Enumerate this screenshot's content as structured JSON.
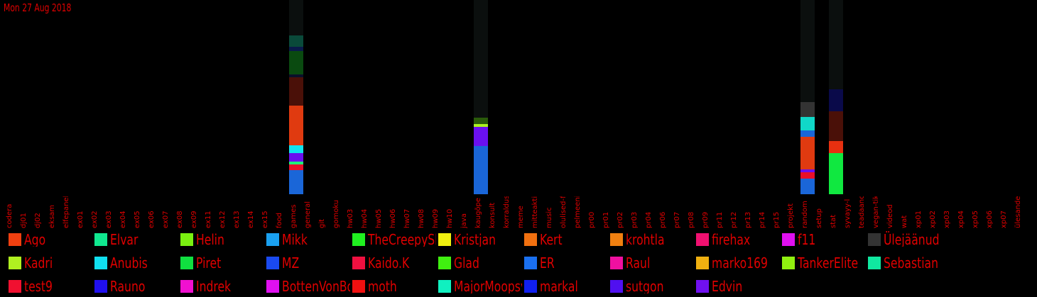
{
  "header": {
    "date": "Mon 27 Aug 2018"
  },
  "chart_data": {
    "type": "bar",
    "stacked": true,
    "title": "",
    "xlabel": "",
    "ylabel": "",
    "y_unit": "relative",
    "background": "#000000",
    "track_color": "#0b0f0e",
    "text_color": "#e00000",
    "categories": [
      "codera",
      "dj01",
      "dj02",
      "eksam",
      "elfepanek",
      "ex01",
      "ex02",
      "ex03",
      "ex04",
      "ex05",
      "ex06",
      "ex07",
      "ex08",
      "ex09",
      "ex11",
      "ex12",
      "ex13",
      "ex14",
      "ex15",
      "food",
      "games",
      "general",
      "git",
      "gomoku",
      "hw03",
      "hw04",
      "hw05",
      "hw06",
      "hw07",
      "hw08",
      "hw09",
      "hw10",
      "java",
      "kaugõpe",
      "konsult",
      "korraldus",
      "meme",
      "mitteaktiivsed",
      "music",
      "olulised-f",
      "pelmeeni",
      "pr00",
      "pr01",
      "pr02",
      "pr03",
      "pr04",
      "pr06",
      "pr07",
      "pr08",
      "pr09",
      "pr11",
      "pr12",
      "pr13",
      "pr14",
      "pr15",
      "projekt",
      "random",
      "setup",
      "stat",
      "syvayy-l",
      "teadaand",
      "vegan-tik",
      "videod",
      "wat",
      "xp01",
      "xp02",
      "xp03",
      "xp04",
      "xp05",
      "xp06",
      "xp07",
      "ülesanded"
    ],
    "tracks": [
      "games",
      "kaugõpe",
      "random",
      "stat"
    ],
    "bars": [
      {
        "category": "games",
        "segments": [
          {
            "color": "#1a66d8",
            "value": 34
          },
          {
            "color": "#e8102a",
            "value": 8
          },
          {
            "color": "#1ef07a",
            "value": 4
          },
          {
            "color": "#6a10f0",
            "value": 12
          },
          {
            "color": "#10e4f0",
            "value": 11
          },
          {
            "color": "#e03a10",
            "value": 56
          },
          {
            "color": "#4a1008",
            "value": 40
          },
          {
            "color": "#0a102a",
            "value": 4
          },
          {
            "color": "#0a4a10",
            "value": 33
          },
          {
            "color": "#0a1a4a",
            "value": 6
          },
          {
            "color": "#0a4a3a",
            "value": 16
          }
        ]
      },
      {
        "category": "kaugõpe",
        "segments": [
          {
            "color": "#1a66d8",
            "value": 68
          },
          {
            "color": "#6a10f0",
            "value": 27
          },
          {
            "color": "#aaf020",
            "value": 4
          },
          {
            "color": "#2a5a0a",
            "value": 9
          }
        ]
      },
      {
        "category": "random",
        "segments": [
          {
            "color": "#1a66d8",
            "value": 22
          },
          {
            "color": "#e8102a",
            "value": 9
          },
          {
            "color": "#6a10f0",
            "value": 4
          },
          {
            "color": "#e03a10",
            "value": 46
          },
          {
            "color": "#1a66d8",
            "value": 9
          },
          {
            "color": "#10d8c8",
            "value": 19
          },
          {
            "color": "#333333",
            "value": 21
          }
        ]
      },
      {
        "category": "stat",
        "segments": [
          {
            "color": "#10e840",
            "value": 58
          },
          {
            "color": "#e83010",
            "value": 17
          },
          {
            "color": "#4a1008",
            "value": 42
          },
          {
            "color": "#0a0a4a",
            "value": 31
          }
        ]
      }
    ],
    "legend": [
      {
        "name": "Ago",
        "color": "#f04010"
      },
      {
        "name": "Elvar",
        "color": "#10e890"
      },
      {
        "name": "Helin",
        "color": "#7af010"
      },
      {
        "name": "Mikk",
        "color": "#1aa0f0"
      },
      {
        "name": "TheCreepySh",
        "color": "#20f020"
      },
      {
        "name": "Kristjan",
        "color": "#f0f010"
      },
      {
        "name": "Kert",
        "color": "#f07010"
      },
      {
        "name": "krohtla",
        "color": "#f08010"
      },
      {
        "name": "firehax",
        "color": "#f01070"
      },
      {
        "name": "f11",
        "color": "#e010f0"
      },
      {
        "name": "Ülejäänud",
        "color": "#333333"
      },
      {
        "name": "Kadri",
        "color": "#b0f020"
      },
      {
        "name": "Anubis",
        "color": "#10e0f0"
      },
      {
        "name": "Piret",
        "color": "#10e040"
      },
      {
        "name": "MZ",
        "color": "#1a4af0"
      },
      {
        "name": "Kaido.K",
        "color": "#f01040"
      },
      {
        "name": "Glad",
        "color": "#40f010"
      },
      {
        "name": "ER",
        "color": "#1a70f0"
      },
      {
        "name": "Raul",
        "color": "#f010a0"
      },
      {
        "name": "marko169",
        "color": "#f0b010"
      },
      {
        "name": "TankerElite",
        "color": "#90f010"
      },
      {
        "name": "Sebastian",
        "color": "#10e8a0"
      },
      {
        "name": "test9",
        "color": "#f01030"
      },
      {
        "name": "Rauno",
        "color": "#2010f0"
      },
      {
        "name": "Indrek",
        "color": "#f010d0"
      },
      {
        "name": "BottenVonBot",
        "color": "#e010f0"
      },
      {
        "name": "moth",
        "color": "#f01010"
      },
      {
        "name": "MajorMoopsy",
        "color": "#10f0c0"
      },
      {
        "name": "markal",
        "color": "#1020f0"
      },
      {
        "name": "sutgon",
        "color": "#5010f0"
      },
      {
        "name": "Edvin",
        "color": "#7010f0"
      }
    ]
  }
}
